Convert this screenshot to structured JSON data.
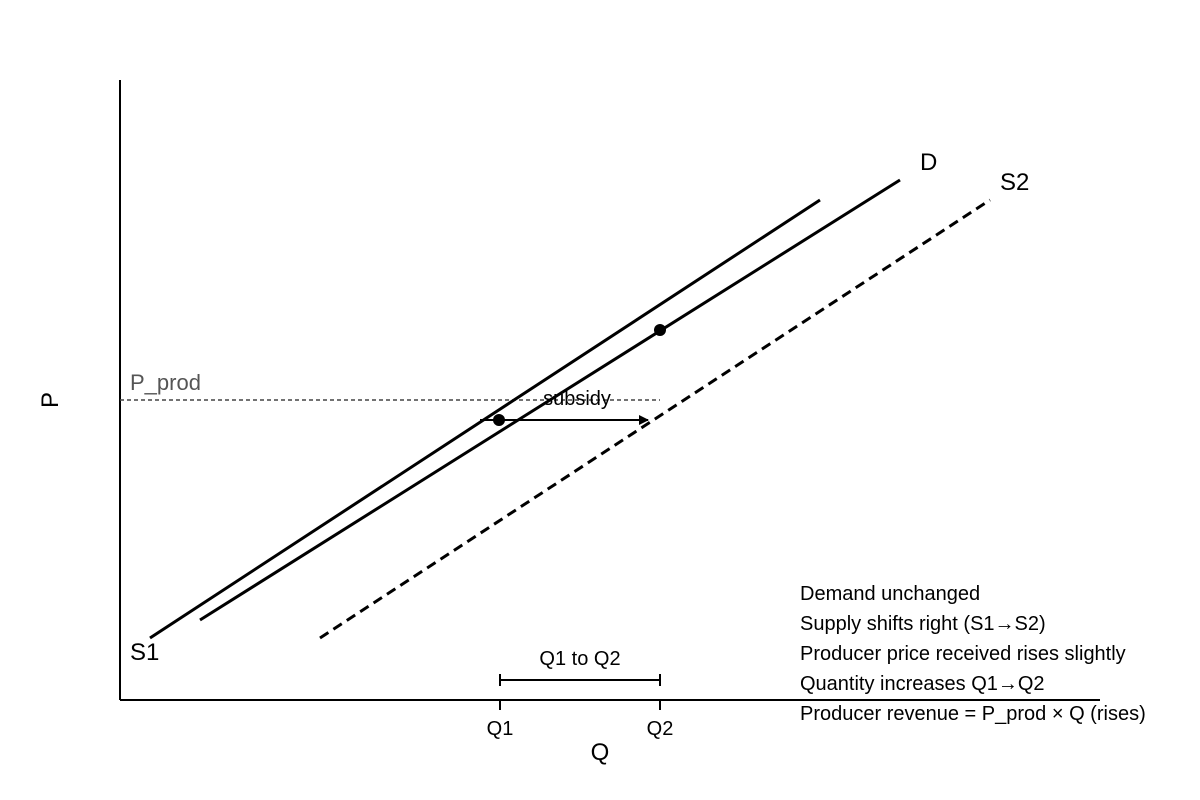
{
  "axes": {
    "y_label": "P",
    "x_label": "Q"
  },
  "curves": {
    "s1_label": "S1",
    "d_label": "D",
    "s2_label": "S2"
  },
  "price_line": {
    "label": "P_prod"
  },
  "shift": {
    "label": "subsidy"
  },
  "quantities": {
    "q1": "Q1",
    "q2": "Q2",
    "range_label": "Q1 to Q2"
  },
  "notes": [
    "Demand unchanged",
    "Supply shifts right (S1→S2)",
    "Producer price received rises slightly",
    "Quantity increases Q1→Q2",
    "Producer revenue = P_prod × Q (rises)"
  ],
  "colors": {
    "ink": "#000000",
    "price_label": "#555555",
    "price_line": "#444444"
  }
}
